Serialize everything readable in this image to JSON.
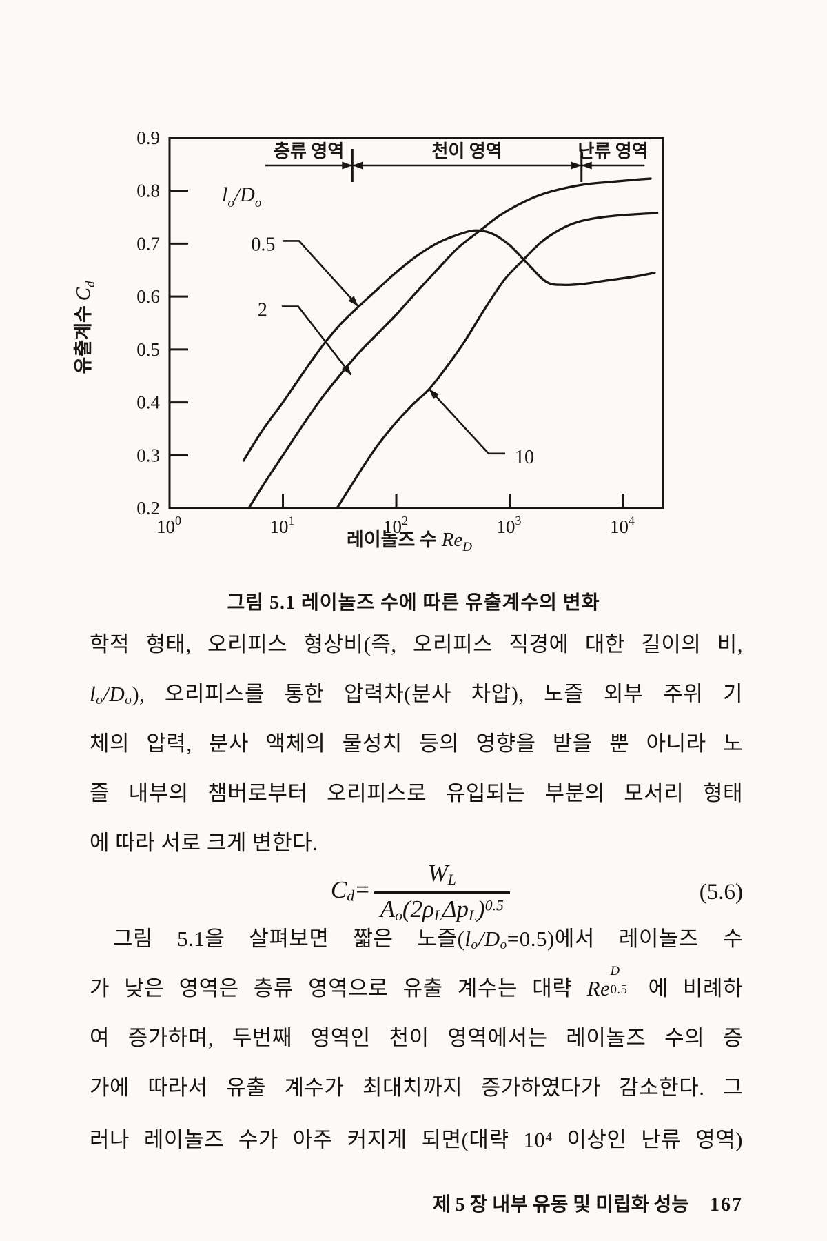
{
  "figure": {
    "caption": "그림 5.1   레이놀즈 수에 따른 유출계수의 변화"
  },
  "chart_data": {
    "type": "line",
    "x_scale": "log",
    "xlim": [
      1,
      22500
    ],
    "ylim": [
      0.2,
      0.9
    ],
    "grid": false,
    "y_ticks": [
      "0.9",
      "0.8",
      "0.7",
      "0.6",
      "0.5",
      "0.4",
      "0.3",
      "0.2"
    ],
    "y_tick_values": [
      0.9,
      0.8,
      0.7,
      0.6,
      0.5,
      0.4,
      0.3,
      0.2
    ],
    "x_tick_base": "10",
    "x_tick_exponents": [
      0,
      1,
      2,
      3,
      4
    ],
    "xlabel": {
      "korean": "레이놀즈 수",
      "symbol": "Re",
      "symbol_sub": "D"
    },
    "ylabel": {
      "korean": "유출계수",
      "symbol": "C",
      "symbol_sub": "d"
    },
    "legend_title": {
      "l": "l",
      "l_sub": "o",
      "slash_d": "/D",
      "d_sub": "o"
    },
    "regions": [
      {
        "label": "층류 영역",
        "from": 7,
        "to": 41,
        "arrow_left": false,
        "arrow_right": true
      },
      {
        "label": "천이 영역",
        "from": 41,
        "to": 4300,
        "arrow_left": true,
        "arrow_right": true
      },
      {
        "label": "난류 영역",
        "from": 4300,
        "to": 15500,
        "arrow_left": true,
        "arrow_right": false
      }
    ],
    "region_dividers": [
      41,
      4300
    ],
    "series": [
      {
        "name": "0.5",
        "points": [
          [
            4.5,
            0.29
          ],
          [
            6.5,
            0.345
          ],
          [
            10,
            0.4
          ],
          [
            15,
            0.455
          ],
          [
            22,
            0.505
          ],
          [
            32,
            0.547
          ],
          [
            46,
            0.58
          ],
          [
            70,
            0.616
          ],
          [
            100,
            0.646
          ],
          [
            150,
            0.676
          ],
          [
            230,
            0.701
          ],
          [
            350,
            0.717
          ],
          [
            500,
            0.725
          ],
          [
            700,
            0.719
          ],
          [
            1000,
            0.697
          ],
          [
            1400,
            0.665
          ],
          [
            2100,
            0.628
          ],
          [
            3000,
            0.622
          ],
          [
            4500,
            0.624
          ],
          [
            7000,
            0.63
          ],
          [
            12000,
            0.637
          ],
          [
            19000,
            0.645
          ]
        ],
        "label_pos": [
          6.7,
          0.7
        ],
        "arrow_tip": [
          46,
          0.582
        ]
      },
      {
        "name": "2",
        "points": [
          [
            5,
            0.2
          ],
          [
            7,
            0.25
          ],
          [
            10,
            0.3
          ],
          [
            15,
            0.357
          ],
          [
            22,
            0.408
          ],
          [
            32,
            0.452
          ],
          [
            46,
            0.492
          ],
          [
            70,
            0.532
          ],
          [
            100,
            0.566
          ],
          [
            150,
            0.608
          ],
          [
            230,
            0.651
          ],
          [
            350,
            0.692
          ],
          [
            550,
            0.725
          ],
          [
            800,
            0.752
          ],
          [
            1200,
            0.774
          ],
          [
            1800,
            0.791
          ],
          [
            2800,
            0.803
          ],
          [
            4600,
            0.812
          ],
          [
            8000,
            0.817
          ],
          [
            13000,
            0.821
          ],
          [
            17500,
            0.823
          ]
        ],
        "label_pos": [
          6.6,
          0.576
        ],
        "arrow_tip": [
          40,
          0.452
        ]
      },
      {
        "name": "10",
        "points": [
          [
            30,
            0.2
          ],
          [
            45,
            0.26
          ],
          [
            65,
            0.312
          ],
          [
            95,
            0.357
          ],
          [
            140,
            0.396
          ],
          [
            195,
            0.425
          ],
          [
            280,
            0.468
          ],
          [
            400,
            0.515
          ],
          [
            600,
            0.576
          ],
          [
            900,
            0.632
          ],
          [
            1300,
            0.668
          ],
          [
            1900,
            0.703
          ],
          [
            2800,
            0.727
          ],
          [
            4000,
            0.741
          ],
          [
            6000,
            0.749
          ],
          [
            10000,
            0.754
          ],
          [
            20000,
            0.758
          ]
        ],
        "label_pos": [
          1350,
          0.298
        ],
        "arrow_tip": [
          195,
          0.425
        ]
      }
    ],
    "ink_color": "#181715"
  },
  "formula_lodo": {
    "l": "l",
    "l_sub": "o",
    "slash_d": "/D",
    "d_sub": "o"
  },
  "paragraph1": {
    "line1": "학적 형태, 오리피스 형상비(즉, 오리피스 직경에 대한 길이의 비,",
    "line2_rest": "), 오리피스를 통한 압력차(분사 차압), 노즐 외부 주위 기",
    "line3": "체의 압력, 분사 액체의 물성치 등의 영향을 받을 뿐 아니라 노",
    "line4": "즐 내부의 챔버로부터 오리피스로 유입되는 부분의 모서리 형태",
    "line5": "에 따라 서로 크게 변한다."
  },
  "equation": {
    "lhs": "C",
    "lhs_sub": "d",
    "equals": "=",
    "num": "W",
    "num_sub": "L",
    "den_a": "A",
    "den_a_sub": "o",
    "den_mid": "(2ρ",
    "den_rho_sub": "L",
    "den_dp": "Δp",
    "den_dp_sub": "L",
    "den_close": ")",
    "den_exp": "0.5",
    "number": "(5.6)"
  },
  "paragraph2": {
    "line1_pre": "그림 5.1을 살펴보면 짧은 노즐(",
    "line1_post": "=0.5)에서 레이놀즈 수",
    "line2_pre": "가 낮은 영역은 층류 영역으로 유출 계수는 대략 ",
    "line2_re": "Re",
    "line2_sup": "0.5",
    "line2_sub": "D",
    "line2_post": " 에 비례하",
    "line3": "여 증가하며, 두번째 영역인 천이 영역에서는 레이놀즈 수의 증",
    "line4": "가에 따라서 유출 계수가 최대치까지 증가하였다가 감소한다. 그",
    "line5_pre": "러나 레이놀즈 수가 아주 커지게 되면(대략 10",
    "line5_sup": "4",
    "line5_post": " 이상인 난류 영역)"
  },
  "footer": {
    "text": "제 5 장 내부 유동 및 미립화 성능",
    "page_number": "167"
  }
}
